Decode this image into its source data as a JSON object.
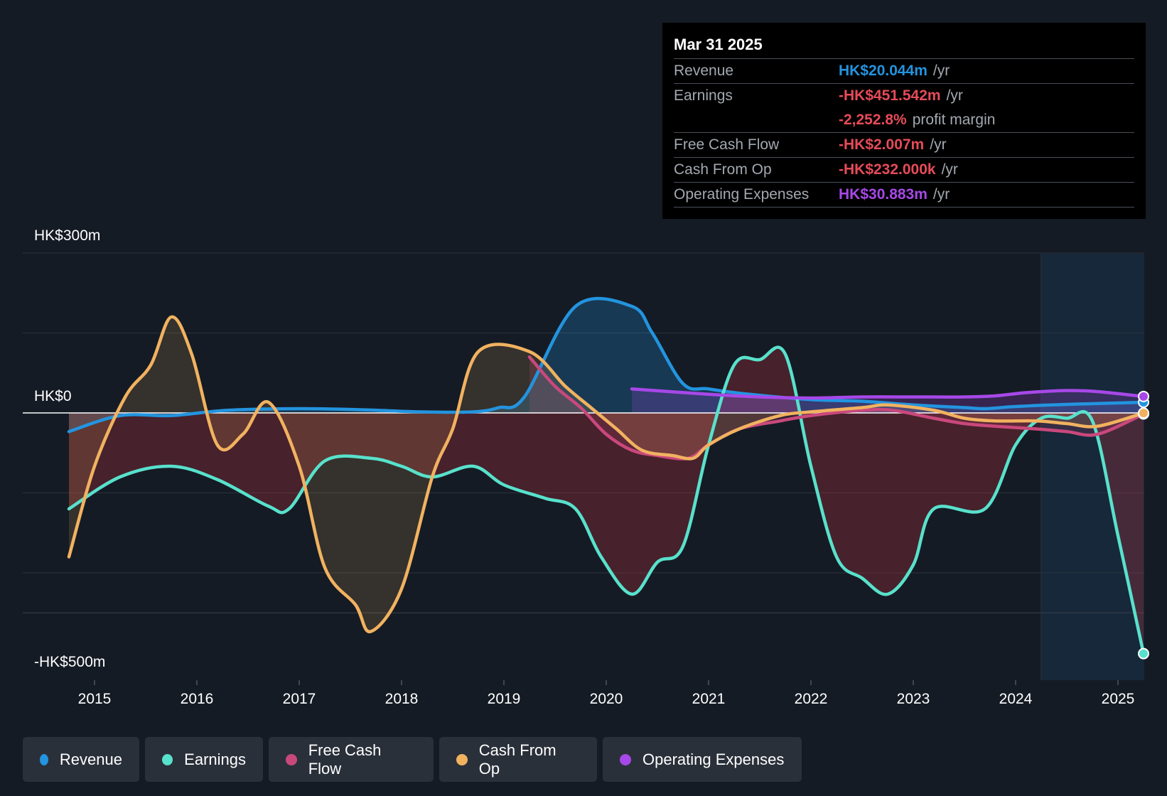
{
  "chart_data": {
    "type": "line",
    "title": "",
    "y_unit": "HK$m",
    "ylim": [
      -500,
      300
    ],
    "y_axis_labels": [
      "HK$300m",
      "HK$0",
      "-HK$500m"
    ],
    "x_ticks": [
      "2015",
      "2016",
      "2017",
      "2018",
      "2019",
      "2020",
      "2021",
      "2022",
      "2023",
      "2024",
      "2025"
    ],
    "forecast_region_start": 2024.25,
    "series": [
      {
        "name": "Revenue",
        "color": "#2394df",
        "start": 2014.75,
        "points": [
          [
            2014.75,
            -35
          ],
          [
            2015.25,
            -5
          ],
          [
            2015.75,
            -5
          ],
          [
            2016.3,
            5
          ],
          [
            2017.0,
            8
          ],
          [
            2017.6,
            6
          ],
          [
            2018.2,
            2
          ],
          [
            2018.7,
            2
          ],
          [
            2018.95,
            10
          ],
          [
            2019.2,
            30
          ],
          [
            2019.7,
            200
          ],
          [
            2020.25,
            200
          ],
          [
            2020.45,
            150
          ],
          [
            2020.75,
            55
          ],
          [
            2021.0,
            45
          ],
          [
            2021.4,
            35
          ],
          [
            2022.0,
            25
          ],
          [
            2022.5,
            22
          ],
          [
            2023.0,
            15
          ],
          [
            2023.5,
            10
          ],
          [
            2023.7,
            8
          ],
          [
            2024.0,
            12
          ],
          [
            2024.5,
            16
          ],
          [
            2025.25,
            20
          ]
        ]
      },
      {
        "name": "Earnings",
        "color": "#58e1cc",
        "start": 2014.75,
        "points": [
          [
            2014.75,
            -180
          ],
          [
            2015.25,
            -120
          ],
          [
            2015.75,
            -100
          ],
          [
            2016.2,
            -125
          ],
          [
            2016.7,
            -175
          ],
          [
            2016.9,
            -180
          ],
          [
            2017.25,
            -90
          ],
          [
            2017.7,
            -85
          ],
          [
            2018.0,
            -100
          ],
          [
            2018.3,
            -120
          ],
          [
            2018.7,
            -100
          ],
          [
            2019.0,
            -135
          ],
          [
            2019.4,
            -160
          ],
          [
            2019.7,
            -180
          ],
          [
            2019.95,
            -270
          ],
          [
            2020.25,
            -340
          ],
          [
            2020.5,
            -280
          ],
          [
            2020.75,
            -250
          ],
          [
            2021.0,
            -60
          ],
          [
            2021.25,
            90
          ],
          [
            2021.5,
            100
          ],
          [
            2021.75,
            110
          ],
          [
            2022.0,
            -100
          ],
          [
            2022.25,
            -270
          ],
          [
            2022.5,
            -310
          ],
          [
            2022.75,
            -340
          ],
          [
            2023.0,
            -285
          ],
          [
            2023.2,
            -180
          ],
          [
            2023.7,
            -180
          ],
          [
            2024.0,
            -60
          ],
          [
            2024.25,
            -10
          ],
          [
            2024.5,
            -10
          ],
          [
            2024.75,
            -15
          ],
          [
            2025.0,
            -230
          ],
          [
            2025.25,
            -451.542
          ]
        ]
      },
      {
        "name": "Free Cash Flow",
        "color": "#c9487c",
        "start": 2019.25,
        "points": [
          [
            2019.25,
            105
          ],
          [
            2019.5,
            50
          ],
          [
            2019.75,
            10
          ],
          [
            2020.0,
            -40
          ],
          [
            2020.25,
            -70
          ],
          [
            2020.5,
            -80
          ],
          [
            2020.8,
            -85
          ],
          [
            2021.0,
            -60
          ],
          [
            2021.3,
            -30
          ],
          [
            2021.7,
            -15
          ],
          [
            2022.0,
            -5
          ],
          [
            2022.5,
            5
          ],
          [
            2022.8,
            5
          ],
          [
            2023.2,
            -10
          ],
          [
            2023.5,
            -20
          ],
          [
            2023.8,
            -25
          ],
          [
            2024.2,
            -30
          ],
          [
            2024.5,
            -35
          ],
          [
            2024.8,
            -40
          ],
          [
            2025.25,
            -2.007
          ]
        ]
      },
      {
        "name": "Cash From Op",
        "color": "#f1b260",
        "start": 2014.75,
        "points": [
          [
            2014.75,
            -270
          ],
          [
            2015.0,
            -100
          ],
          [
            2015.3,
            30
          ],
          [
            2015.55,
            90
          ],
          [
            2015.75,
            180
          ],
          [
            2015.95,
            110
          ],
          [
            2016.2,
            -60
          ],
          [
            2016.45,
            -40
          ],
          [
            2016.7,
            20
          ],
          [
            2017.0,
            -100
          ],
          [
            2017.25,
            -290
          ],
          [
            2017.55,
            -360
          ],
          [
            2017.7,
            -410
          ],
          [
            2018.0,
            -330
          ],
          [
            2018.3,
            -120
          ],
          [
            2018.5,
            -30
          ],
          [
            2018.75,
            115
          ],
          [
            2019.25,
            115
          ],
          [
            2019.6,
            50
          ],
          [
            2019.85,
            10
          ],
          [
            2020.1,
            -30
          ],
          [
            2020.35,
            -70
          ],
          [
            2020.65,
            -80
          ],
          [
            2020.85,
            -85
          ],
          [
            2021.0,
            -60
          ],
          [
            2021.3,
            -30
          ],
          [
            2021.7,
            -5
          ],
          [
            2022.0,
            2
          ],
          [
            2022.5,
            10
          ],
          [
            2022.75,
            15
          ],
          [
            2023.2,
            5
          ],
          [
            2023.5,
            -10
          ],
          [
            2023.8,
            -15
          ],
          [
            2024.2,
            -15
          ],
          [
            2024.5,
            -20
          ],
          [
            2024.8,
            -25
          ],
          [
            2025.25,
            -0.232
          ]
        ]
      },
      {
        "name": "Operating Expenses",
        "color": "#a748e8",
        "start": 2020.25,
        "points": [
          [
            2020.25,
            45
          ],
          [
            2021.0,
            35
          ],
          [
            2021.5,
            30
          ],
          [
            2022.0,
            28
          ],
          [
            2022.5,
            30
          ],
          [
            2023.0,
            30
          ],
          [
            2023.5,
            30
          ],
          [
            2023.8,
            32
          ],
          [
            2024.1,
            38
          ],
          [
            2024.5,
            42
          ],
          [
            2024.8,
            40
          ],
          [
            2025.25,
            30.883
          ]
        ]
      }
    ]
  },
  "tooltip": {
    "date": "Mar 31 2025",
    "rows": [
      {
        "label": "Revenue",
        "value": "HK$20.044m",
        "unit": "/yr",
        "color": "#2394df"
      },
      {
        "label": "Earnings",
        "value": "-HK$451.542m",
        "unit": "/yr",
        "color": "#e64b58"
      },
      {
        "label": "",
        "value": "-2,252.8%",
        "unit": "profit margin",
        "color": "#e64b58"
      },
      {
        "label": "Free Cash Flow",
        "value": "-HK$2.007m",
        "unit": "/yr",
        "color": "#e64b58"
      },
      {
        "label": "Cash From Op",
        "value": "-HK$232.000k",
        "unit": "/yr",
        "color": "#e64b58"
      },
      {
        "label": "Operating Expenses",
        "value": "HK$30.883m",
        "unit": "/yr",
        "color": "#a748e8"
      }
    ]
  },
  "legend": [
    {
      "label": "Revenue",
      "color": "#2394df"
    },
    {
      "label": "Earnings",
      "color": "#58e1cc"
    },
    {
      "label": "Free Cash Flow",
      "color": "#c9487c"
    },
    {
      "label": "Cash From Op",
      "color": "#f1b260"
    },
    {
      "label": "Operating Expenses",
      "color": "#a748e8"
    }
  ]
}
